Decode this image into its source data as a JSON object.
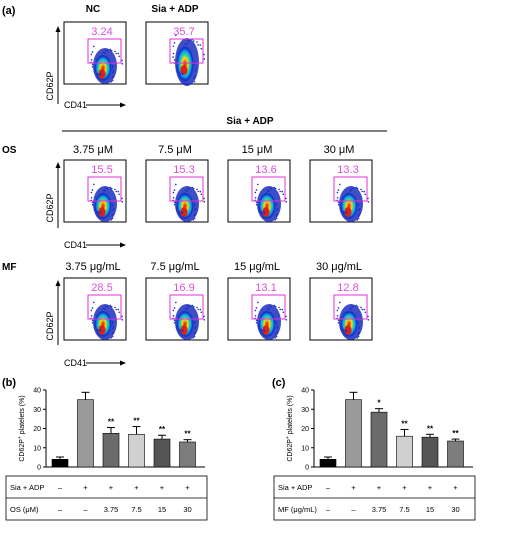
{
  "panel_a": {
    "label": "(a)",
    "top_row": [
      {
        "header": "NC",
        "percent": "3.24"
      },
      {
        "header": "Sia + ADP",
        "percent": "35.7"
      }
    ],
    "treatment_header": "Sia + ADP",
    "os_row": {
      "label": "OS",
      "concentrations": [
        "3.75 μM",
        "7.5 μM",
        "15 μM",
        "30 μM"
      ],
      "percents": [
        "15.5",
        "15.3",
        "13.6",
        "13.3"
      ]
    },
    "mf_row": {
      "label": "MF",
      "concentrations": [
        "3.75 μg/mL",
        "7.5 μg/mL",
        "15 μg/mL",
        "30 μg/mL"
      ],
      "percents": [
        "28.5",
        "16.9",
        "13.1",
        "12.8"
      ]
    },
    "y_axis_label": "CD62P",
    "x_axis_label": "CD41"
  },
  "chart_data": [
    {
      "type": "bar",
      "panel": "(b)",
      "ylabel": "CD62P+ platelets (%)",
      "ylabel_main": "CD62P",
      "ylabel_sup": "+",
      "ylabel_rest": " platelets (%)",
      "ylim": [
        0,
        40
      ],
      "yticks": [
        "0",
        "10",
        "20",
        "30",
        "40"
      ],
      "values": [
        4,
        35,
        17.5,
        17,
        14.5,
        13
      ],
      "errors": [
        1.2,
        3.8,
        3,
        4,
        2,
        1.2
      ],
      "colors": [
        "#000000",
        "#9a9a9a",
        "#6b6b6b",
        "#d0d0d0",
        "#555555",
        "#7d7d7d"
      ],
      "significance": [
        "",
        "",
        "**",
        "**",
        "**",
        "**"
      ],
      "table": {
        "row1_label": "Sia + ADP",
        "row1": [
          "–",
          "+",
          "+",
          "+",
          "+",
          "+"
        ],
        "row2_label": "OS (μM)",
        "row2": [
          "–",
          "–",
          "3.75",
          "7.5",
          "15",
          "30"
        ]
      }
    },
    {
      "type": "bar",
      "panel": "(c)",
      "ylabel": "CD62P+ platelets (%)",
      "ylabel_main": "CD62P",
      "ylabel_sup": "+",
      "ylabel_rest": " platelets (%)",
      "ylim": [
        0,
        40
      ],
      "yticks": [
        "0",
        "10",
        "20",
        "30",
        "40"
      ],
      "values": [
        4,
        35,
        28.5,
        16,
        15.5,
        13.5
      ],
      "errors": [
        1.2,
        3.8,
        1.8,
        3.5,
        1.5,
        1
      ],
      "colors": [
        "#000000",
        "#9a9a9a",
        "#6b6b6b",
        "#d0d0d0",
        "#555555",
        "#7d7d7d"
      ],
      "significance": [
        "",
        "",
        "*",
        "**",
        "**",
        "**"
      ],
      "table": {
        "row1_label": "Sia + ADP",
        "row1": [
          "–",
          "+",
          "+",
          "+",
          "+",
          "+"
        ],
        "row2_label": "MF (μg/mL)",
        "row2": [
          "–",
          "–",
          "3.75",
          "7.5",
          "15",
          "30"
        ]
      }
    }
  ]
}
